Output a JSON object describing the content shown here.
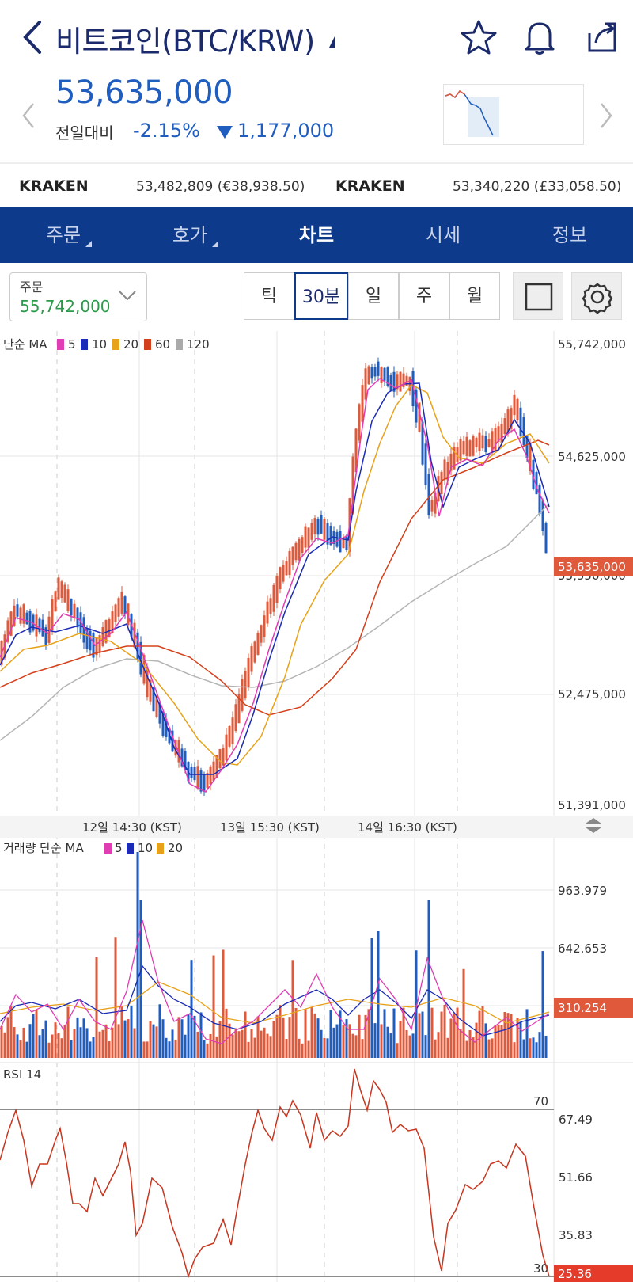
{
  "header": {
    "title": "비트코인(BTC/KRW)",
    "price": "53,635,000",
    "change_label": "전일대비",
    "change_pct": "-2.15%",
    "change_amount": "1,177,000"
  },
  "exchanges": [
    {
      "name": "KRAKEN",
      "value": "53,482,809 (€38,938.50)"
    },
    {
      "name": "KRAKEN",
      "value": "53,340,220 (£33,058.50)"
    }
  ],
  "tabs": [
    {
      "label": "주문"
    },
    {
      "label": "호가"
    },
    {
      "label": "차트"
    },
    {
      "label": "시세"
    },
    {
      "label": "정보"
    }
  ],
  "toolbar": {
    "order_label": "주문",
    "order_value": "55,742,000",
    "periods": [
      "틱",
      "30분",
      "일",
      "주",
      "월"
    ],
    "active_period": "30분"
  },
  "main_chart": {
    "ma_legend": {
      "prefix": "단순 MA",
      "items": [
        "5",
        "10",
        "20",
        "60",
        "120"
      ]
    },
    "y_ticks": [
      "55,742,000",
      "54,625,000",
      "52,475,000",
      "51,391,000"
    ],
    "current_price_label": "53,635,000",
    "hidden_tick": "53,550,000",
    "x_ticks": [
      "12일 14:30 (KST)",
      "13일 15:30 (KST)",
      "14일 16:30 (KST)"
    ]
  },
  "volume_chart": {
    "legend": {
      "prefix": "거래량 단순 MA",
      "items": [
        "5",
        "10",
        "20"
      ]
    },
    "y_ticks": [
      "963.979",
      "642.653"
    ],
    "current_label": "310.254"
  },
  "rsi_chart": {
    "legend": "RSI 14",
    "levels": [
      "70",
      "30"
    ],
    "y_ticks": [
      "67.49",
      "51.66",
      "35.83"
    ],
    "current_label": "25.36"
  },
  "colors": {
    "brand": "#0e3a8c",
    "down": "#1f5dbf",
    "up": "#e0593b",
    "ma5": "#e03cb3",
    "ma10": "#1b2bb5",
    "ma20": "#e8a21a",
    "ma60": "#d4401b",
    "ma120": "#aaaaaa",
    "rsi": "#c8361f"
  },
  "icons": [
    "back-icon",
    "star-icon",
    "bell-icon",
    "share-icon",
    "chevron-left-icon",
    "chevron-right-icon",
    "chevron-down-icon",
    "square-icon",
    "gear-icon",
    "resize-icon"
  ]
}
